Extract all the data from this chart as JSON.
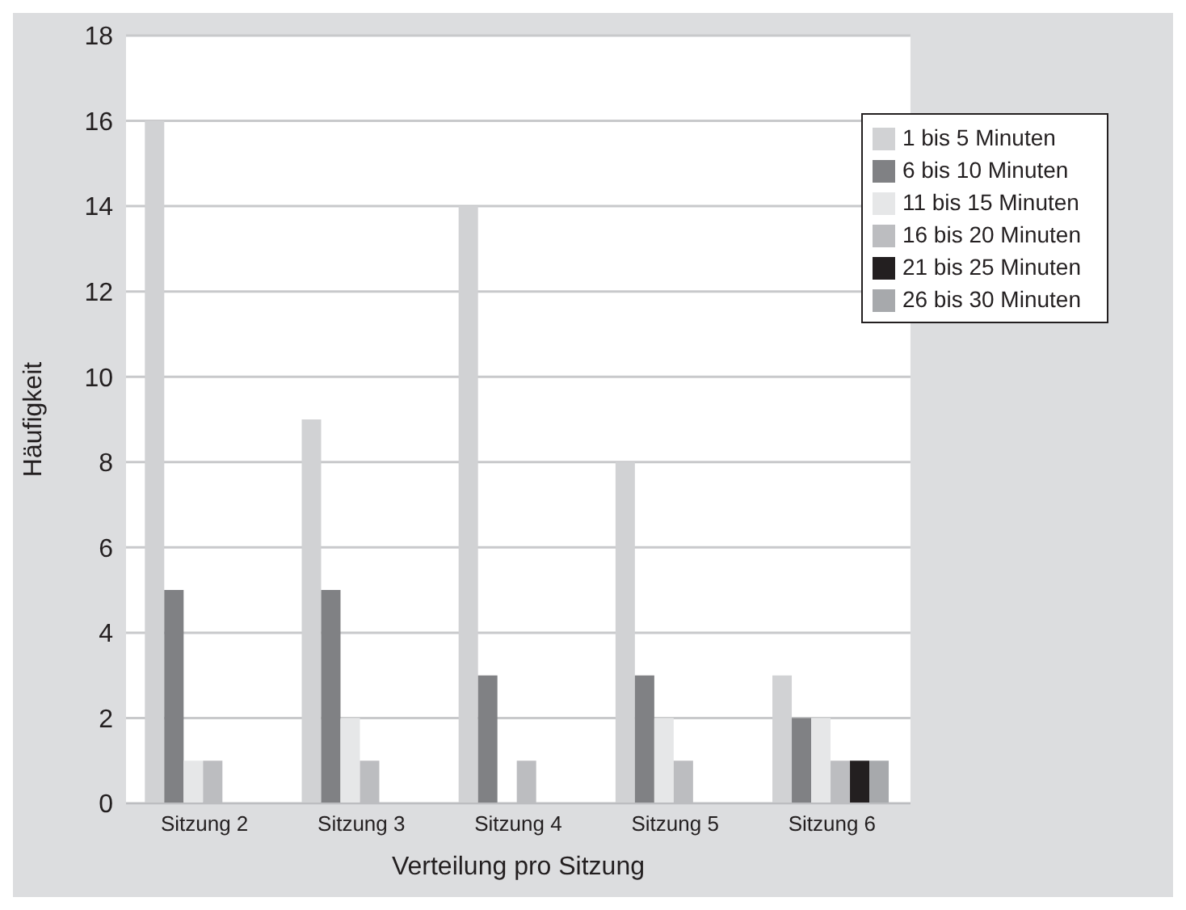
{
  "chart_data": {
    "type": "bar",
    "xlabel": "Verteilung pro Sitzung",
    "ylabel": "Häufigkeit",
    "categories": [
      "Sitzung 2",
      "Sitzung 3",
      "Sitzung 4",
      "Sitzung 5",
      "Sitzung 6"
    ],
    "series": [
      {
        "name": "1 bis 5 Minuten",
        "color": "#d1d2d4",
        "values": [
          16,
          9,
          14,
          8,
          3
        ]
      },
      {
        "name": "6 bis 10 Minuten",
        "color": "#808184",
        "values": [
          5,
          5,
          3,
          3,
          2
        ]
      },
      {
        "name": "11 bis 15 Minuten",
        "color": "#e6e7e8",
        "values": [
          1,
          2,
          0,
          2,
          2
        ]
      },
      {
        "name": "16 bis 20 Minuten",
        "color": "#bcbdc0",
        "values": [
          1,
          1,
          1,
          1,
          1
        ]
      },
      {
        "name": "21 bis 25 Minuten",
        "color": "#231f20",
        "values": [
          0,
          0,
          0,
          0,
          1
        ]
      },
      {
        "name": "26 bis 30 Minuten",
        "color": "#a7a9ac",
        "values": [
          0,
          0,
          0,
          0,
          1
        ]
      }
    ],
    "ylim": [
      0,
      18
    ],
    "yticks": [
      0,
      2,
      4,
      6,
      8,
      10,
      12,
      14,
      16,
      18
    ],
    "grid": "y",
    "legend": "top right"
  }
}
